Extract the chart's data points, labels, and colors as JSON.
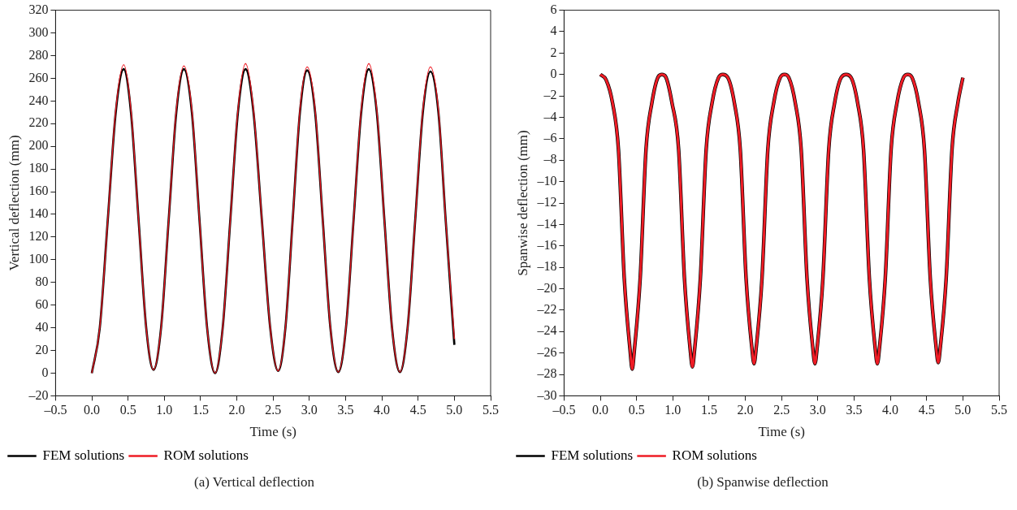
{
  "chart_data": [
    {
      "type": "line",
      "xlabel": "Time (s)",
      "ylabel": "Vertical deflection (mm)",
      "annotations": [
        "(a) Vertical deflection"
      ],
      "xlim": [
        -0.5,
        5.5
      ],
      "xticks": [
        {
          "value": -0.5,
          "label": "–0.5"
        },
        {
          "value": 0,
          "label": "0.0"
        },
        {
          "value": 0.5,
          "label": "0.5"
        },
        {
          "value": 1,
          "label": "1.0"
        },
        {
          "value": 1.5,
          "label": "1.5"
        },
        {
          "value": 2,
          "label": "2.0"
        },
        {
          "value": 2.5,
          "label": "2.5"
        },
        {
          "value": 3,
          "label": "3.0"
        },
        {
          "value": 3.5,
          "label": "3.5"
        },
        {
          "value": 4,
          "label": "4.0"
        },
        {
          "value": 4.5,
          "label": "4.5"
        },
        {
          "value": 5,
          "label": "5.0"
        },
        {
          "value": 5.5,
          "label": "5.5"
        }
      ],
      "ylim": [
        -20,
        320
      ],
      "yticks": [
        {
          "value": -20,
          "label": "–20"
        },
        0,
        20,
        40,
        60,
        80,
        100,
        120,
        140,
        160,
        180,
        200,
        220,
        240,
        260,
        280,
        300,
        320
      ],
      "grid": false,
      "legend": "bottom left",
      "x": [
        0,
        0.11,
        0.22,
        0.33,
        0.44,
        0.54,
        0.645,
        0.75,
        0.85,
        0.955,
        1.06,
        1.165,
        1.27,
        1.38,
        1.485,
        1.59,
        1.7,
        1.805,
        1.91,
        2.015,
        2.12,
        2.23,
        2.345,
        2.46,
        2.57,
        2.67,
        2.77,
        2.87,
        2.97,
        3.08,
        3.185,
        3.29,
        3.4,
        3.505,
        3.61,
        3.715,
        3.82,
        3.93,
        4.035,
        4.14,
        4.25,
        4.355,
        4.46,
        4.565,
        4.67,
        4.78,
        4.88,
        5.0
      ],
      "series": [
        {
          "name": "FEM solutions",
          "color": "#000000",
          "values": [
            0,
            40,
            135,
            230,
            268,
            230,
            135,
            40,
            3,
            40,
            135,
            230,
            268,
            230,
            135,
            40,
            0,
            40,
            135,
            230,
            268,
            230,
            135,
            40,
            2,
            40,
            135,
            230,
            267,
            230,
            135,
            40,
            1,
            40,
            135,
            230,
            268,
            230,
            135,
            40,
            1,
            40,
            135,
            230,
            266,
            230,
            135,
            25
          ]
        },
        {
          "name": "ROM solutions",
          "color": "#ee1c25",
          "values": [
            0,
            40,
            135,
            232,
            272,
            232,
            135,
            40,
            3,
            40,
            135,
            232,
            271,
            232,
            135,
            40,
            0,
            40,
            135,
            232,
            273,
            232,
            135,
            40,
            2,
            40,
            135,
            232,
            270,
            232,
            135,
            40,
            1,
            40,
            135,
            232,
            273,
            232,
            135,
            40,
            1,
            40,
            135,
            232,
            270,
            232,
            135,
            30
          ]
        }
      ]
    },
    {
      "type": "line",
      "xlabel": "Time (s)",
      "ylabel": "Spanwise deflection (mm)",
      "annotations": [
        "(b) Spanwise deflection"
      ],
      "xlim": [
        -0.5,
        5.5
      ],
      "xticks": [
        {
          "value": -0.5,
          "label": "–0.5"
        },
        {
          "value": 0,
          "label": "0.0"
        },
        {
          "value": 0.5,
          "label": "0.5"
        },
        {
          "value": 1,
          "label": "1.0"
        },
        {
          "value": 1.5,
          "label": "1.5"
        },
        {
          "value": 2,
          "label": "2.0"
        },
        {
          "value": 2.5,
          "label": "2.5"
        },
        {
          "value": 3,
          "label": "3.0"
        },
        {
          "value": 3.5,
          "label": "3.5"
        },
        {
          "value": 4,
          "label": "4.0"
        },
        {
          "value": 4.5,
          "label": "4.5"
        },
        {
          "value": 5,
          "label": "5.0"
        },
        {
          "value": 5.5,
          "label": "5.5"
        }
      ],
      "ylim": [
        -30,
        6
      ],
      "yticks": [
        {
          "value": -30,
          "label": "–30"
        },
        {
          "value": -28,
          "label": "–28"
        },
        {
          "value": -26,
          "label": "–26"
        },
        {
          "value": -24,
          "label": "–24"
        },
        {
          "value": -22,
          "label": "–22"
        },
        {
          "value": -20,
          "label": "–20"
        },
        {
          "value": -18,
          "label": "–18"
        },
        {
          "value": -16,
          "label": "–16"
        },
        {
          "value": -14,
          "label": "–14"
        },
        {
          "value": -12,
          "label": "–12"
        },
        {
          "value": -10,
          "label": "–10"
        },
        {
          "value": -8,
          "label": "–8"
        },
        {
          "value": -6,
          "label": "–6"
        },
        {
          "value": -4,
          "label": "–4"
        },
        {
          "value": -2,
          "label": "–2"
        },
        0,
        2,
        4,
        6
      ],
      "grid": false,
      "legend": "bottom left",
      "x": [
        0,
        0.08,
        0.17,
        0.25,
        0.33,
        0.41,
        0.44,
        0.47,
        0.55,
        0.63,
        0.71,
        0.8,
        0.85,
        0.9,
        0.99,
        1.08,
        1.16,
        1.24,
        1.27,
        1.3,
        1.38,
        1.46,
        1.54,
        1.63,
        1.69,
        1.76,
        1.85,
        1.93,
        2.01,
        2.09,
        2.12,
        2.15,
        2.23,
        2.31,
        2.39,
        2.48,
        2.54,
        2.6,
        2.69,
        2.77,
        2.85,
        2.93,
        2.96,
        2.99,
        3.07,
        3.15,
        3.23,
        3.32,
        3.39,
        3.46,
        3.55,
        3.63,
        3.71,
        3.79,
        3.82,
        3.85,
        3.93,
        4.01,
        4.09,
        4.18,
        4.24,
        4.3,
        4.39,
        4.47,
        4.55,
        4.63,
        4.66,
        4.69,
        4.77,
        4.85,
        4.93,
        5.0
      ],
      "series": [
        {
          "name": "FEM solutions",
          "color": "#000000",
          "values": [
            0,
            -0.5,
            -2.7,
            -7,
            -19,
            -25.7,
            -27.5,
            -25.7,
            -19,
            -7,
            -2.7,
            -0.2,
            0,
            -0.2,
            -2.7,
            -7,
            -19,
            -25.7,
            -27.3,
            -25.7,
            -19,
            -7,
            -2.7,
            -0.3,
            0,
            -0.3,
            -2.7,
            -7,
            -19,
            -25.5,
            -27,
            -25.5,
            -19,
            -7,
            -2.7,
            -0.3,
            0,
            -0.3,
            -2.7,
            -7,
            -19,
            -25.5,
            -27,
            -25.5,
            -19,
            -7,
            -2.7,
            -0.3,
            0,
            -0.3,
            -2.7,
            -7,
            -19,
            -25.5,
            -27,
            -25.5,
            -19,
            -7,
            -2.7,
            -0.3,
            0,
            -0.3,
            -2.7,
            -7,
            -19,
            -25.4,
            -26.9,
            -25.4,
            -19,
            -7,
            -2.7,
            -0.3
          ]
        },
        {
          "name": "ROM solutions",
          "color": "#ee1c25",
          "values": [
            0,
            -0.5,
            -2.7,
            -7,
            -19,
            -25.7,
            -27.5,
            -25.7,
            -19,
            -7,
            -2.7,
            -0.2,
            0,
            -0.2,
            -2.7,
            -7,
            -19,
            -25.7,
            -27.3,
            -25.7,
            -19,
            -7,
            -2.7,
            -0.3,
            0,
            -0.3,
            -2.7,
            -7,
            -19,
            -25.5,
            -27,
            -25.5,
            -19,
            -7,
            -2.7,
            -0.3,
            0,
            -0.3,
            -2.7,
            -7,
            -19,
            -25.5,
            -27,
            -25.5,
            -19,
            -7,
            -2.7,
            -0.3,
            0,
            -0.3,
            -2.7,
            -7,
            -19,
            -25.5,
            -27,
            -25.5,
            -19,
            -7,
            -2.7,
            -0.3,
            0,
            -0.3,
            -2.7,
            -7,
            -19,
            -25.4,
            -26.9,
            -25.4,
            -19,
            -7,
            -2.7,
            -0.3
          ]
        }
      ]
    }
  ]
}
